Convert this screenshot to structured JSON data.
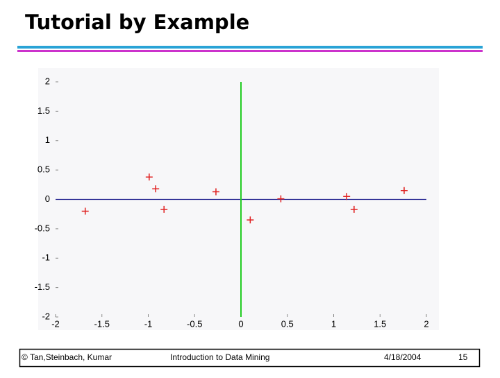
{
  "slide": {
    "title": "Tutorial by Example",
    "footer": {
      "copyright": "© Tan,Steinbach, Kumar",
      "course": "Introduction to Data Mining",
      "date": "4/18/2004",
      "page": "15"
    }
  },
  "chart_data": {
    "type": "scatter",
    "x": [
      -1.68,
      -0.99,
      -0.92,
      -0.83,
      -0.27,
      0.1,
      0.43,
      1.14,
      1.22,
      1.76
    ],
    "values": [
      -0.2,
      0.38,
      0.18,
      -0.17,
      0.13,
      -0.35,
      0.01,
      0.05,
      -0.17,
      0.15
    ],
    "color": "#e02020",
    "xlim": [
      -2,
      2
    ],
    "ylim": [
      -2,
      2
    ],
    "xticks": [
      -2,
      -1.5,
      -1,
      -0.5,
      0,
      0.5,
      1,
      1.5,
      2
    ],
    "yticks": [
      -2,
      -1.5,
      -1,
      -0.5,
      0,
      0.5,
      1,
      1.5,
      2
    ],
    "hline": {
      "value": 0,
      "color": "#1a1a8c"
    },
    "vline": {
      "value": 0,
      "color": "#22cc22"
    }
  }
}
